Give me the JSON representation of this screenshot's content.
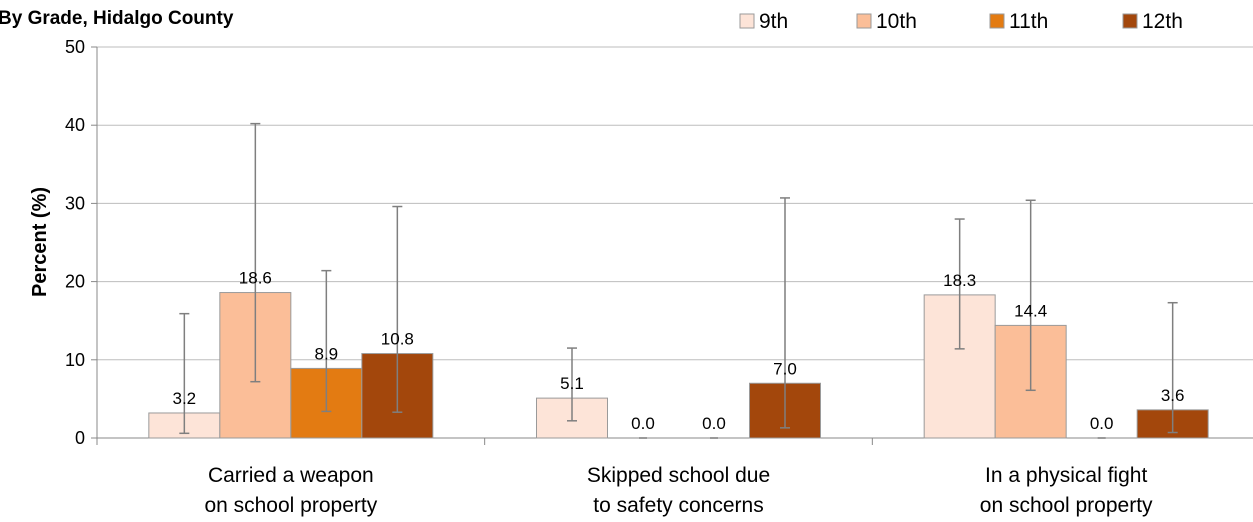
{
  "chart_data": {
    "type": "bar",
    "title": "By Grade, Hidalgo County",
    "ylabel": "Percent (%)",
    "xlabel": "",
    "ylim": [
      0,
      50
    ],
    "yticks": [
      0,
      10,
      20,
      30,
      40,
      50
    ],
    "grid": true,
    "legend_position": "top-right",
    "error_bars": true,
    "categories": [
      [
        "Carried a weapon",
        "on school property"
      ],
      [
        "Skipped school due",
        "to safety concerns"
      ],
      [
        "In a physical fight",
        "on school property"
      ]
    ],
    "series": [
      {
        "name": "9th",
        "color": "#fde4d8",
        "values": [
          3.2,
          5.1,
          18.3
        ],
        "lower": [
          0.6,
          2.2,
          11.4
        ],
        "upper": [
          15.9,
          11.5,
          28.0
        ]
      },
      {
        "name": "10th",
        "color": "#fbbe98",
        "values": [
          18.6,
          0.0,
          14.4
        ],
        "lower": [
          7.2,
          null,
          6.1
        ],
        "upper": [
          40.2,
          null,
          30.4
        ]
      },
      {
        "name": "11th",
        "color": "#e37b12",
        "values": [
          8.9,
          0.0,
          0.0
        ],
        "lower": [
          3.4,
          null,
          null
        ],
        "upper": [
          21.4,
          null,
          null
        ]
      },
      {
        "name": "12th",
        "color": "#a3470c",
        "values": [
          10.8,
          7.0,
          3.6
        ],
        "lower": [
          3.3,
          1.3,
          0.7
        ],
        "upper": [
          29.6,
          30.7,
          17.3
        ]
      }
    ]
  }
}
